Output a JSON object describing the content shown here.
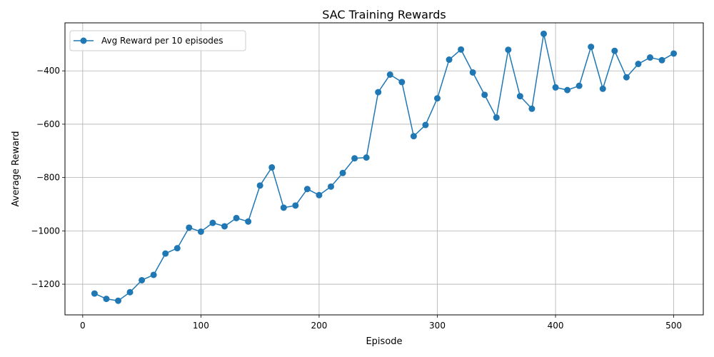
{
  "chart_data": {
    "type": "line",
    "title": "SAC Training Rewards",
    "xlabel": "Episode",
    "ylabel": "Average Reward",
    "xlim": [
      -15,
      525
    ],
    "ylim": [
      -1315,
      -220
    ],
    "xticks": [
      0,
      100,
      200,
      300,
      400,
      500
    ],
    "xtick_labels": [
      "0",
      "100",
      "200",
      "300",
      "400",
      "500"
    ],
    "yticks": [
      -1200,
      -1000,
      -800,
      -600,
      -400
    ],
    "ytick_labels": [
      "−1200",
      "−1000",
      "−800",
      "−600",
      "−400"
    ],
    "grid": true,
    "legend_position": "top-left",
    "series": [
      {
        "name": "Avg Reward per 10 episodes",
        "color": "#1f77b4",
        "marker": "circle",
        "x": [
          10,
          20,
          30,
          40,
          50,
          60,
          70,
          80,
          90,
          100,
          110,
          120,
          130,
          140,
          150,
          160,
          170,
          180,
          190,
          200,
          210,
          220,
          230,
          240,
          250,
          260,
          270,
          280,
          290,
          300,
          310,
          320,
          330,
          340,
          350,
          360,
          370,
          380,
          390,
          400,
          410,
          420,
          430,
          440,
          450,
          460,
          470,
          480,
          490,
          500
        ],
        "y": [
          -1235,
          -1255,
          -1262,
          -1230,
          -1185,
          -1165,
          -1085,
          -1065,
          -988,
          -1003,
          -970,
          -983,
          -952,
          -965,
          -830,
          -762,
          -913,
          -905,
          -843,
          -866,
          -834,
          -783,
          -728,
          -725,
          -480,
          -414,
          -442,
          -645,
          -603,
          -503,
          -358,
          -320,
          -406,
          -490,
          -575,
          -321,
          -495,
          -542,
          -261,
          -462,
          -472,
          -456,
          -310,
          -467,
          -325,
          -424,
          -374,
          -350,
          -360,
          -335
        ]
      }
    ]
  }
}
